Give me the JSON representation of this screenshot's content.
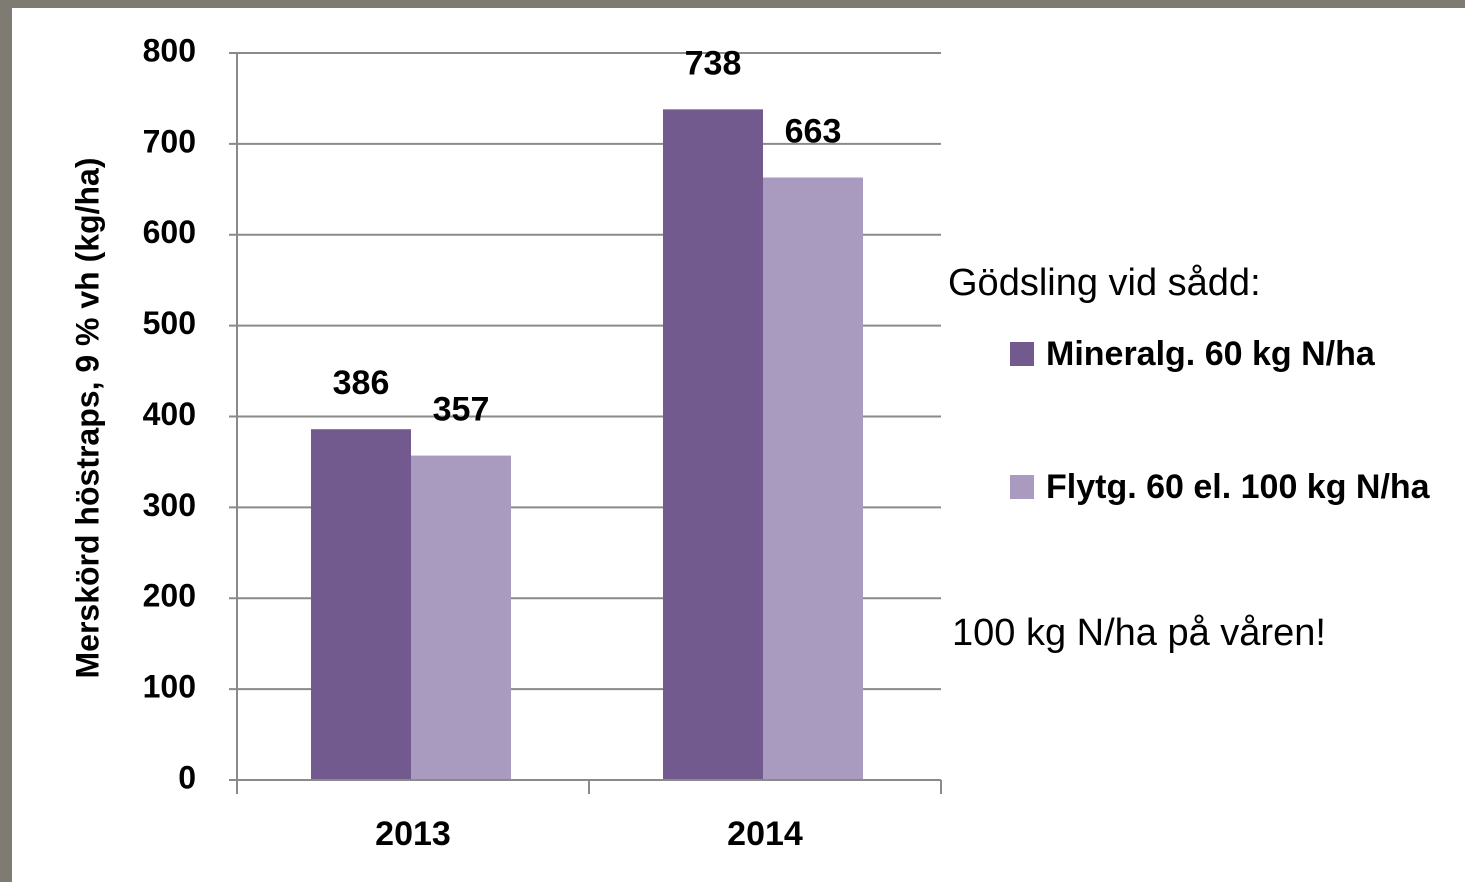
{
  "chart_data": {
    "type": "bar",
    "y_label": "Merskörd höstraps, 9 % vh (kg/ha)",
    "categories": [
      "2013",
      "2014"
    ],
    "legend_title": "Gödsling vid sådd:",
    "series": [
      {
        "name": "Mineralg. 60 kg N/ha",
        "color": "#725a8e",
        "values": [
          386,
          738
        ]
      },
      {
        "name": "Flytg. 60 el. 100 kg N/ha",
        "color": "#a99bbf",
        "values": [
          357,
          663
        ]
      }
    ],
    "annotation": "100 kg N/ha på våren!",
    "ylim": [
      0,
      800
    ],
    "yticks": [
      0,
      100,
      200,
      300,
      400,
      500,
      600,
      700,
      800
    ],
    "grid": true
  }
}
